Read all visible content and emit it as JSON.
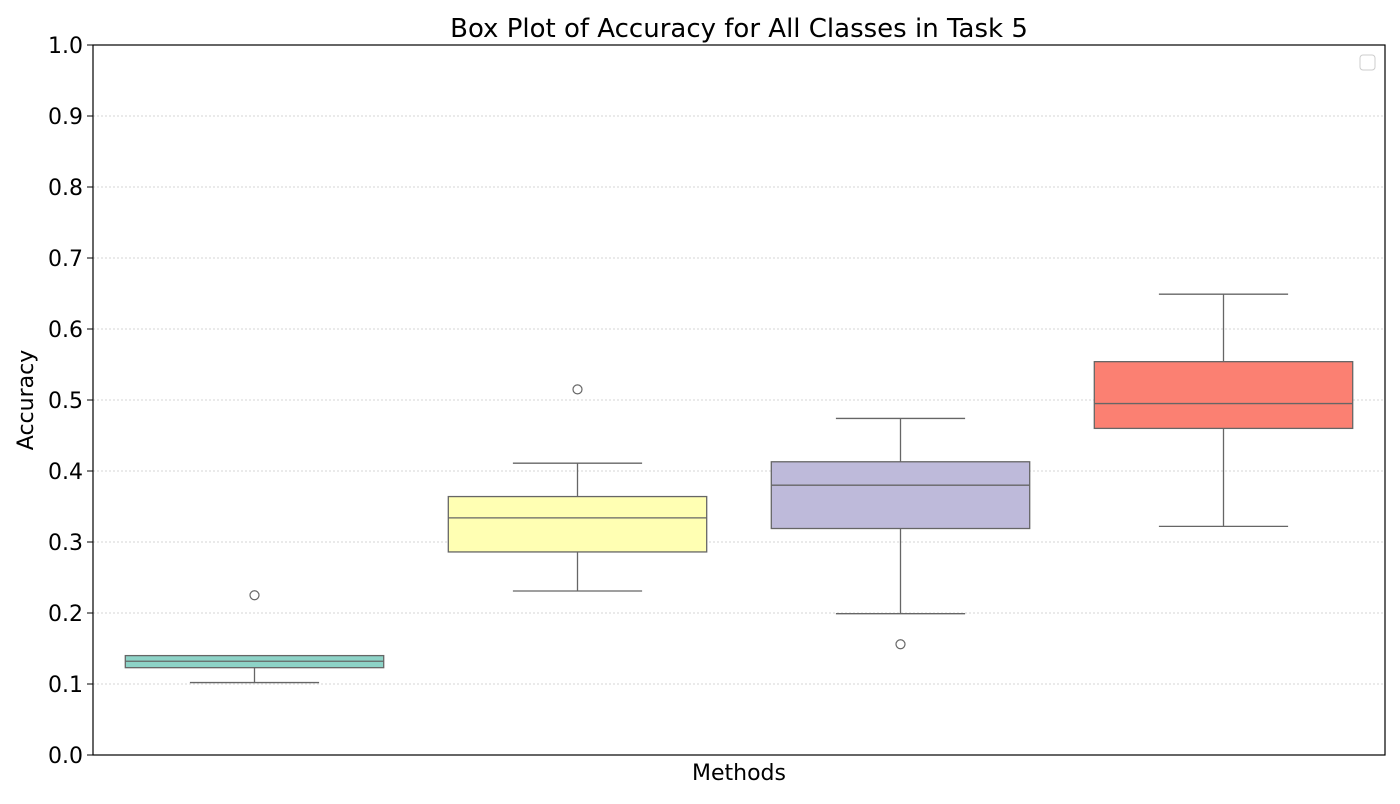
{
  "chart_data": {
    "type": "box",
    "title": "Box Plot of Accuracy for All Classes in Task 5",
    "xlabel": "Methods",
    "ylabel": "Accuracy",
    "ylim": [
      0,
      1
    ],
    "yticks": [
      "0.0",
      "0.1",
      "0.2",
      "0.3",
      "0.4",
      "0.5",
      "0.6",
      "0.7",
      "0.8",
      "0.9",
      "1.0"
    ],
    "grid": "y-dotted",
    "legend": "top-right",
    "legend_entries": [],
    "boxes": [
      {
        "q1": 0.123,
        "median": 0.132,
        "q3": 0.14,
        "whisker_low": 0.102,
        "whisker_high": 0.14,
        "outliers": [
          0.225
        ],
        "color": "#8dd3c7"
      },
      {
        "q1": 0.286,
        "median": 0.334,
        "q3": 0.364,
        "whisker_low": 0.231,
        "whisker_high": 0.411,
        "outliers": [
          0.515
        ],
        "color": "#ffffb3"
      },
      {
        "q1": 0.319,
        "median": 0.38,
        "q3": 0.413,
        "whisker_low": 0.199,
        "whisker_high": 0.474,
        "outliers": [
          0.156
        ],
        "color": "#bebada"
      },
      {
        "q1": 0.46,
        "median": 0.495,
        "q3": 0.554,
        "whisker_low": 0.322,
        "whisker_high": 0.649,
        "outliers": [],
        "color": "#fb8072"
      }
    ]
  }
}
